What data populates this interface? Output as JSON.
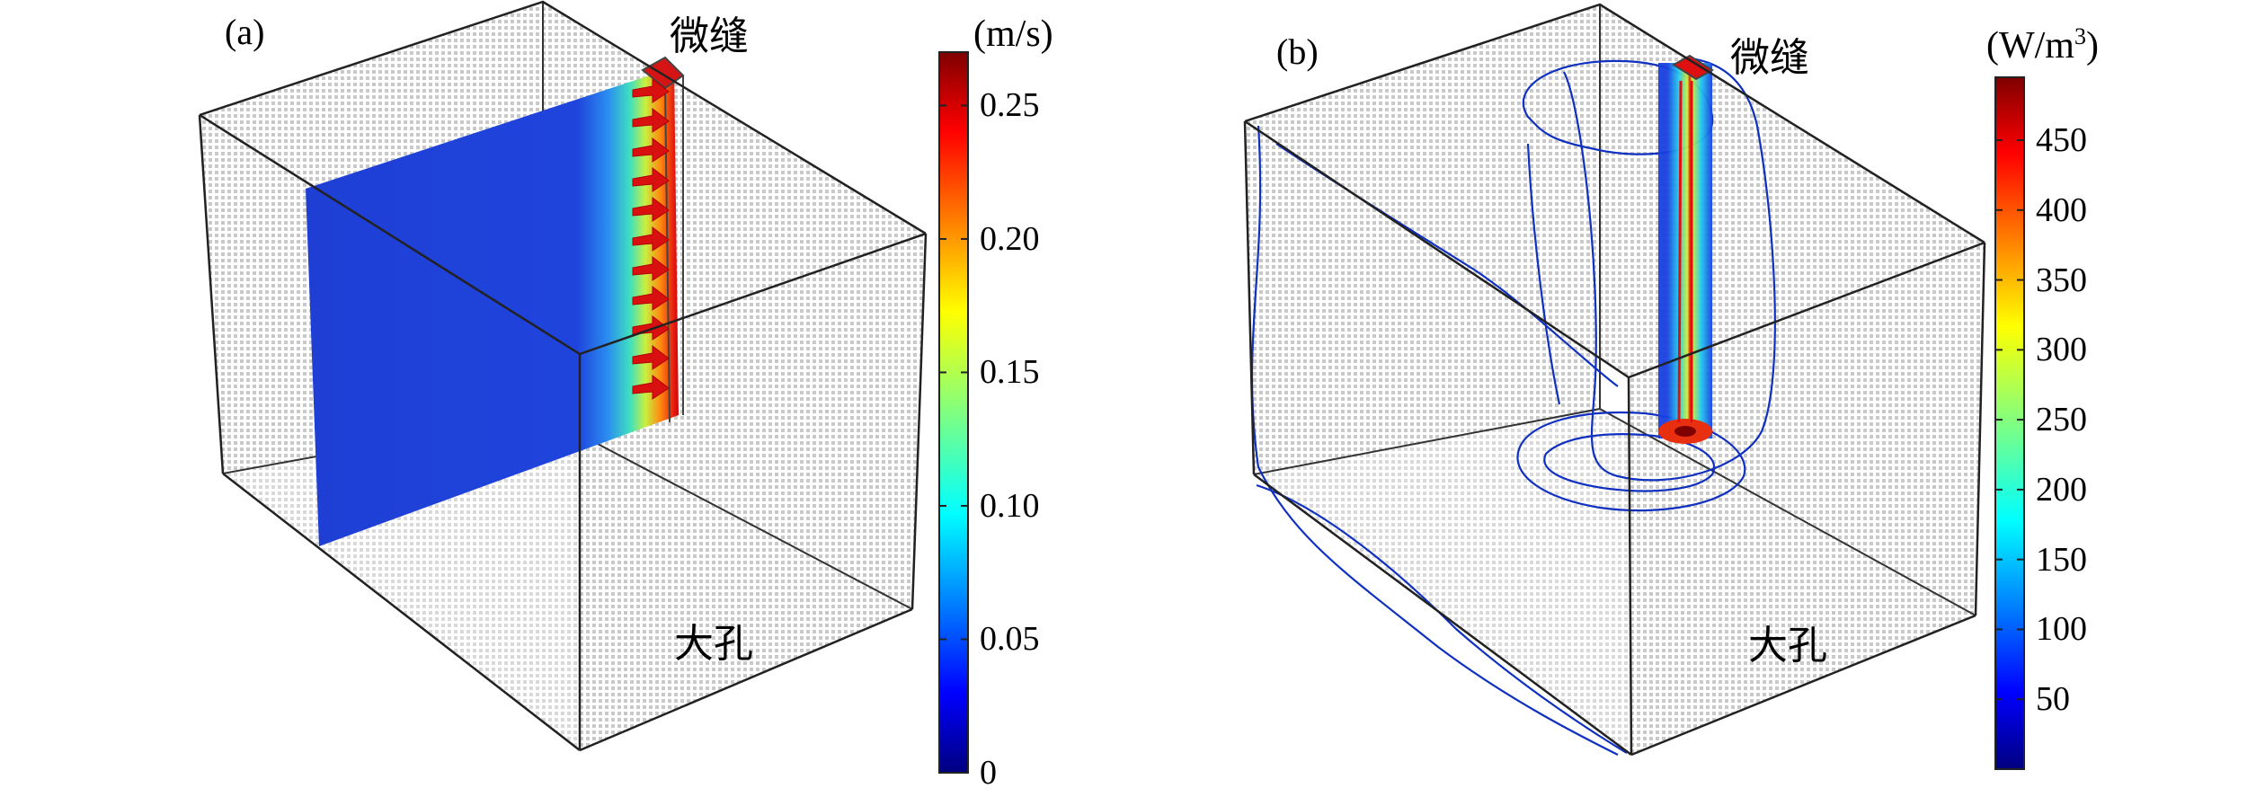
{
  "panels": [
    {
      "id": "a",
      "letter": "(a)",
      "top_label": "微缝",
      "bottom_label": "大孔",
      "colorbar": {
        "unit": "(m/s)",
        "min": 0,
        "max": 0.27,
        "ticks": [
          "0",
          "0.05",
          "0.10",
          "0.15",
          "0.20",
          "0.25"
        ],
        "tick_values": [
          0,
          0.05,
          0.1,
          0.15,
          0.2,
          0.25
        ]
      }
    },
    {
      "id": "b",
      "letter": "(b)",
      "top_label": "微缝",
      "bottom_label": "大孔",
      "colorbar": {
        "unit_base": "(W/m",
        "unit_exp": "3",
        "unit_close": ")",
        "min": 0,
        "max": 495,
        "ticks": [
          "50",
          "100",
          "150",
          "200",
          "250",
          "300",
          "350",
          "400",
          "450"
        ],
        "tick_values": [
          50,
          100,
          150,
          200,
          250,
          300,
          350,
          400,
          450
        ]
      }
    }
  ],
  "colors": {
    "jet_low": "#00007f",
    "jet_high": "#7f0000",
    "field_blue": "#1e40d8",
    "arrow_red": "#d01010",
    "contour_blue": "#1030c0",
    "mesh_grey": "#c8c8c8"
  }
}
